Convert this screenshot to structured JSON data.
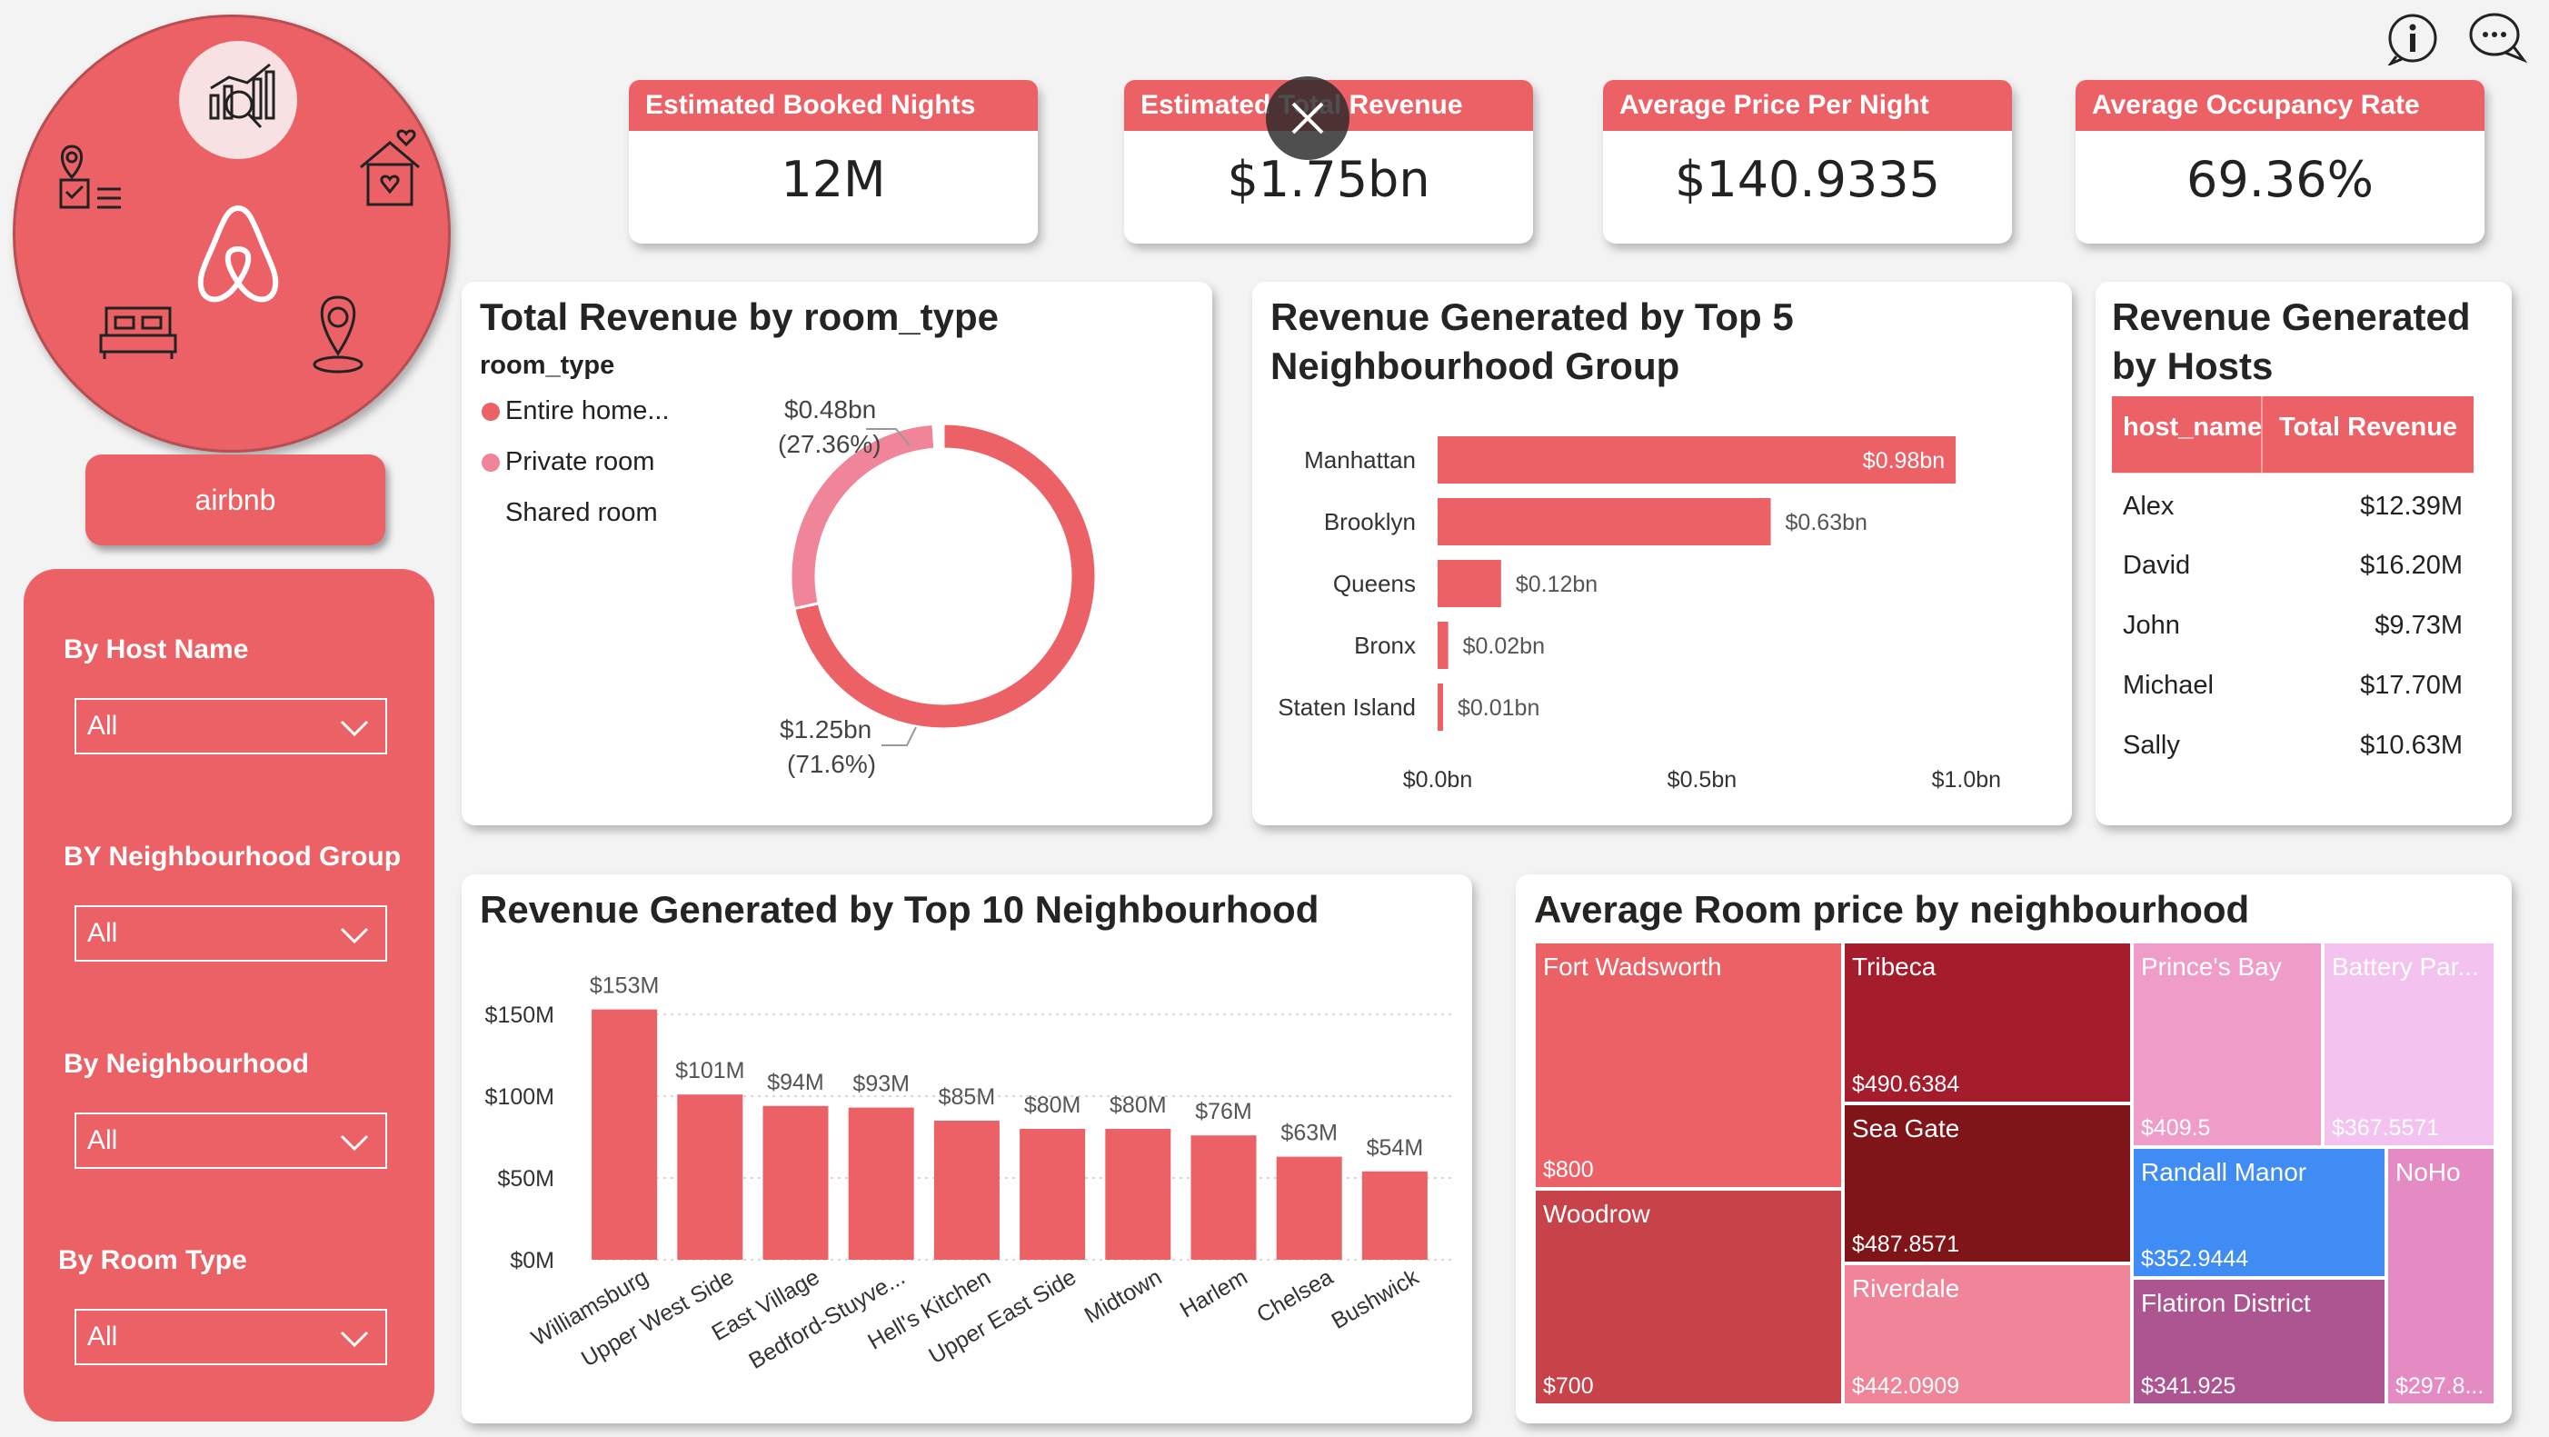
{
  "header_icons": [
    "info-icon",
    "chat-bubble-icon"
  ],
  "logo": {
    "button_label": "airbnb"
  },
  "slicers": [
    {
      "label": "By Host Name",
      "value": "All"
    },
    {
      "label": "BY Neighbourhood Group",
      "value": "All"
    },
    {
      "label": "By Neighbourhood",
      "value": "All"
    },
    {
      "label": "By Room Type",
      "value": "All"
    }
  ],
  "kpis": [
    {
      "title": "Estimated Booked Nights",
      "value": "12M"
    },
    {
      "title": "Estimated Total Revenue",
      "value": "$1.75bn"
    },
    {
      "title": "Average Price Per Night",
      "value": "$140.9335"
    },
    {
      "title": "Average Occupancy Rate",
      "value": "69.36%"
    }
  ],
  "donut": {
    "title": "Total Revenue by room_type",
    "legend_title": "room_type",
    "legend": [
      "Entire home...",
      "Private room",
      "Shared room"
    ],
    "label_private": "$0.48bn",
    "label_private_pct": "(27.36%)",
    "label_entire": "$1.25bn",
    "label_entire_pct": "(71.6%)",
    "colors": {
      "entire": "#ec6166",
      "private": "#f08599",
      "shared": "#ffffff"
    }
  },
  "top5": {
    "title_line1": "Revenue Generated by Top 5",
    "title_line2": "Neighbourhood Group"
  },
  "hosts": {
    "title_line1": "Revenue Generated",
    "title_line2": "by Hosts",
    "col1": "host_name",
    "col2": "Total Revenue",
    "rows": [
      {
        "name": "Alex",
        "rev": "$12.39M"
      },
      {
        "name": "David",
        "rev": "$16.20M"
      },
      {
        "name": "John",
        "rev": "$9.73M"
      },
      {
        "name": "Michael",
        "rev": "$17.70M"
      },
      {
        "name": "Sally",
        "rev": "$10.63M"
      }
    ]
  },
  "top10": {
    "title": "Revenue Generated by Top 10 Neighbourhood"
  },
  "treemap": {
    "title": "Average Room price by neighbourhood",
    "cells": [
      {
        "name": "Fort Wadsworth",
        "price": "$800",
        "color": "#ec6166"
      },
      {
        "name": "Woodrow",
        "price": "$700",
        "color": "#c8424a"
      },
      {
        "name": "Tribeca",
        "price": "$490.6384",
        "color": "#a51d2d"
      },
      {
        "name": "Sea Gate",
        "price": "$487.8571",
        "color": "#801519"
      },
      {
        "name": "Riverdale",
        "price": "$442.0909",
        "color": "#f08599"
      },
      {
        "name": "Prince's Bay",
        "price": "$409.5",
        "color": "#ef9dc8"
      },
      {
        "name": "Battery Par...",
        "price": "$367.5571",
        "color": "#f4c2ef"
      },
      {
        "name": "Randall Manor",
        "price": "$352.9444",
        "color": "#3f8cf5"
      },
      {
        "name": "Flatiron District",
        "price": "$341.925",
        "color": "#ad5590"
      },
      {
        "name": "NoHo",
        "price": "$297.8...",
        "color": "#e58bc4"
      }
    ]
  },
  "chart_data": [
    {
      "type": "pie",
      "title": "Total Revenue by room_type",
      "legend_title": "room_type",
      "categories": [
        "Entire home...",
        "Private room",
        "Shared room"
      ],
      "values": [
        71.6,
        27.36,
        1.04
      ],
      "value_labels": [
        "$1.25bn",
        "$0.48bn",
        ""
      ]
    },
    {
      "type": "bar",
      "orientation": "horizontal",
      "title": "Revenue Generated by Top 5 Neighbourhood Group",
      "categories": [
        "Manhattan",
        "Brooklyn",
        "Queens",
        "Bronx",
        "Staten Island"
      ],
      "values": [
        0.98,
        0.63,
        0.12,
        0.02,
        0.01
      ],
      "value_labels": [
        "$0.98bn",
        "$0.63bn",
        "$0.12bn",
        "$0.02bn",
        "$0.01bn"
      ],
      "xlim": [
        0,
        1.1
      ],
      "x_ticks": [
        0,
        0.5,
        1.0
      ],
      "x_tick_labels": [
        "$0.0bn",
        "$0.5bn",
        "$1.0bn"
      ],
      "color": "#ec6166"
    },
    {
      "type": "bar",
      "title": "Revenue Generated by Top 10 Neighbourhood",
      "categories": [
        "Williamsburg",
        "Upper West Side",
        "East Village",
        "Bedford-Stuyve...",
        "Hell's Kitchen",
        "Upper East Side",
        "Midtown",
        "Harlem",
        "Chelsea",
        "Bushwick"
      ],
      "values": [
        153,
        101,
        94,
        93,
        85,
        80,
        80,
        76,
        63,
        54
      ],
      "value_labels": [
        "$153M",
        "$101M",
        "$94M",
        "$93M",
        "$85M",
        "$80M",
        "$80M",
        "$76M",
        "$63M",
        "$54M"
      ],
      "ylim": [
        0,
        165
      ],
      "y_ticks": [
        0,
        50,
        100,
        150
      ],
      "y_tick_labels": [
        "$0M",
        "$50M",
        "$100M",
        "$150M"
      ],
      "color": "#ec6166"
    }
  ]
}
